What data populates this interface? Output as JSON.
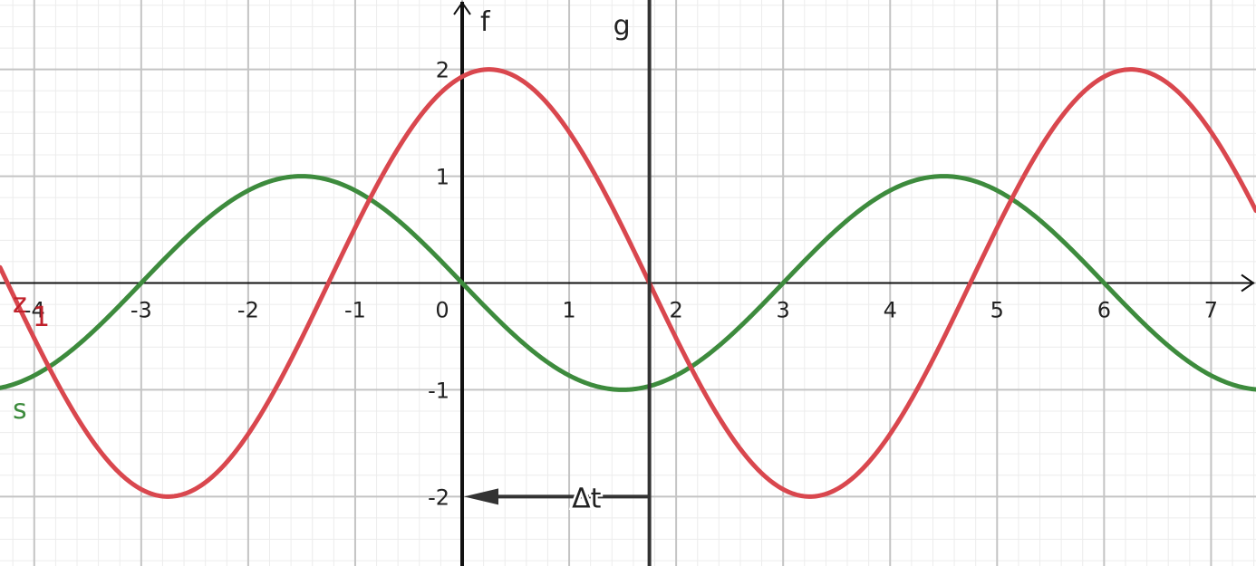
{
  "chart_data": {
    "type": "line",
    "title": "",
    "xlim": [
      -4.32,
      7.42
    ],
    "ylim": [
      -2.65,
      2.65
    ],
    "grid": true,
    "minor_grid": true,
    "x_ticks": [
      {
        "value": -4,
        "label": "-4"
      },
      {
        "value": -3,
        "label": "-3"
      },
      {
        "value": -2,
        "label": "-2"
      },
      {
        "value": -1,
        "label": "-1"
      },
      {
        "value": 0,
        "label": "0"
      },
      {
        "value": 1,
        "label": "1"
      },
      {
        "value": 2,
        "label": "2"
      },
      {
        "value": 3,
        "label": "3"
      },
      {
        "value": 4,
        "label": "4"
      },
      {
        "value": 5,
        "label": "5"
      },
      {
        "value": 6,
        "label": "6"
      },
      {
        "value": 7,
        "label": "7"
      }
    ],
    "y_ticks": [
      {
        "value": -2,
        "label": "-2"
      },
      {
        "value": -1,
        "label": "-1"
      },
      {
        "value": 1,
        "label": "1"
      },
      {
        "value": 2,
        "label": "2"
      }
    ],
    "axis_labels": {
      "y_axis_name": "f"
    },
    "series": [
      {
        "name": "s",
        "label": "s",
        "color": "#3d8b3d",
        "amplitude": 1,
        "period": 6.0,
        "phase_shift": 0,
        "sign": -1
      },
      {
        "name": "z",
        "label": "z",
        "subscript": "1",
        "color": "#d9474e",
        "amplitude": 2,
        "period": 6.0,
        "phase_shift": 0.25
      }
    ],
    "vertical_line": {
      "name": "g",
      "label": "g",
      "x": 1.75
    },
    "delta_marker": {
      "label": "Δt",
      "y": -2,
      "from_x": 1.75,
      "to_x": 0
    }
  }
}
